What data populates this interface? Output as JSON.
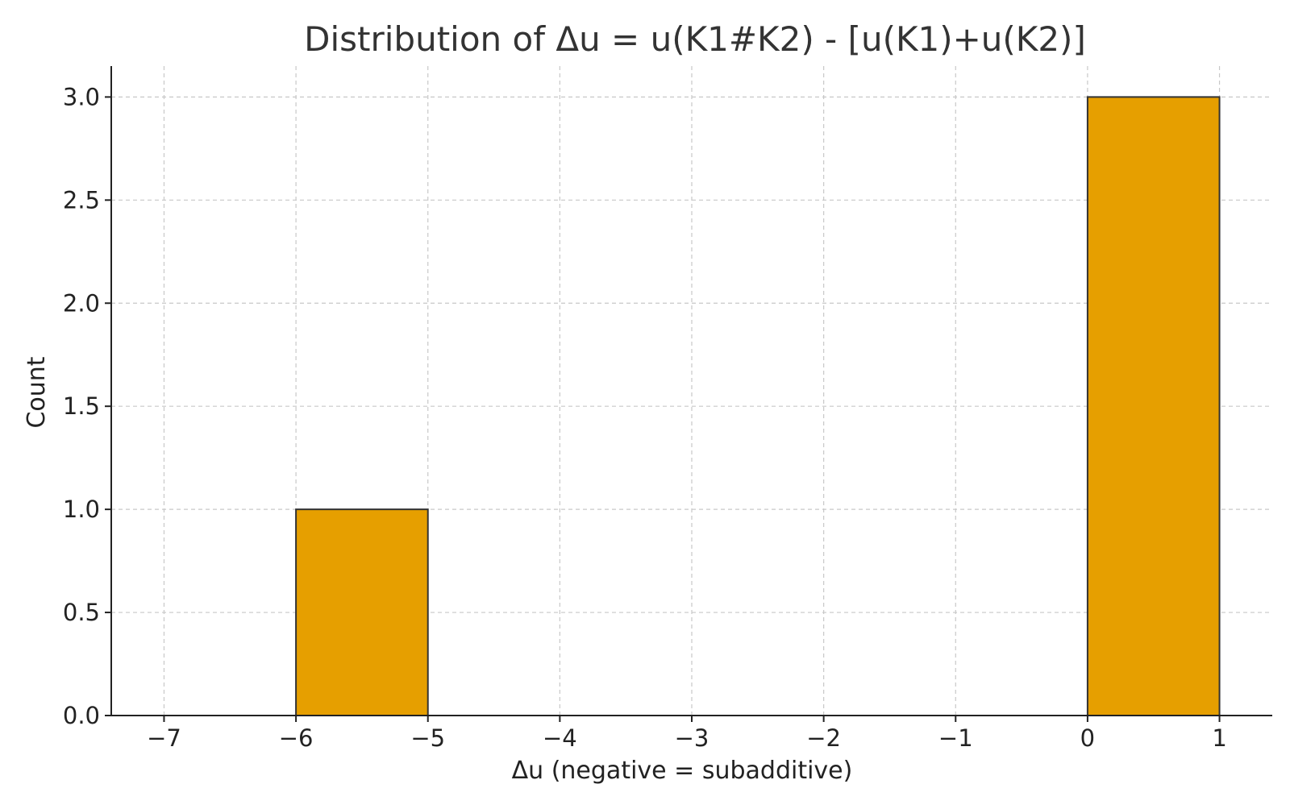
{
  "chart_data": {
    "type": "histogram",
    "title": "Distribution of Δu = u(K1#K2) - [u(K1)+u(K2)]",
    "xlabel": "Δu (negative = subadditive)",
    "ylabel": "Count",
    "xlim": [
      -7.4,
      1.4
    ],
    "ylim": [
      0,
      3.15
    ],
    "x_ticks": [
      -7,
      -6,
      -5,
      -4,
      -3,
      -2,
      -1,
      0,
      1
    ],
    "x_tick_labels": [
      "−7",
      "−6",
      "−5",
      "−4",
      "−3",
      "−2",
      "−1",
      "0",
      "1"
    ],
    "y_ticks": [
      0,
      0.5,
      1,
      1.5,
      2,
      2.5,
      3
    ],
    "y_tick_labels": [
      "0.0",
      "0.5",
      "1.0",
      "1.5",
      "2.0",
      "2.5",
      "3.0"
    ],
    "bins": [
      {
        "start": -7,
        "end": -6,
        "count": 0
      },
      {
        "start": -6,
        "end": -5,
        "count": 1
      },
      {
        "start": -5,
        "end": -4,
        "count": 0
      },
      {
        "start": -4,
        "end": -3,
        "count": 0
      },
      {
        "start": -3,
        "end": -2,
        "count": 0
      },
      {
        "start": -2,
        "end": -1,
        "count": 0
      },
      {
        "start": -1,
        "end": 0,
        "count": 0
      },
      {
        "start": 0,
        "end": 1,
        "count": 3
      }
    ],
    "grid": true,
    "bar_color": "#E69F00",
    "edge_color": "#333333"
  }
}
